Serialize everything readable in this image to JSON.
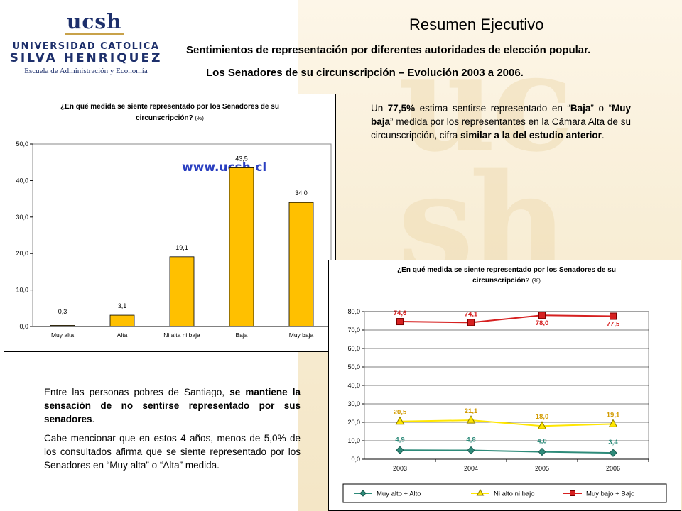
{
  "logo": {
    "ucsh": "ucsh",
    "line1": "UNIVERSIDAD CATOLICA",
    "line2": "SILVA HENRIQUEZ",
    "line3": "Escuela de Administración y Economía"
  },
  "header": {
    "title": "Resumen Ejecutivo",
    "subtitle1": "Sentimientos de representación por diferentes autoridades de elección popular.",
    "subtitle2": "Los Senadores de su circunscripción – Evolución 2003 a 2006."
  },
  "text_right": {
    "t1": "Un ",
    "t2": "77,5%",
    "t3": " estima sentirse representado en “",
    "t4": "Baja",
    "t5": "” o “",
    "t6": "Muy baja",
    "t7": "” medida por los representantes en la Cámara Alta de su circunscripción, cifra ",
    "t8": "similar a la del estudio anterior",
    "t9": "."
  },
  "text_left": {
    "p1a": "Entre las personas pobres de Santiago, ",
    "p1b": "se mantiene la sensación de no sentirse representado por sus senadores",
    "p1c": ".",
    "p2": "Cabe mencionar que en estos 4 años, menos de 5,0% de los consultados afirma que se siente representado por los Senadores en “Muy alta” o “Alta” medida."
  },
  "chart_data": [
    {
      "type": "bar",
      "title_line1": "¿En qué medida se siente representado por los Senadores de su",
      "title_line2": "circunscripción?",
      "title_unit": "(%)",
      "watermark": "www.ucsh.cl",
      "categories": [
        "Muy alta",
        "Alta",
        "Ni alta ni baja",
        "Baja",
        "Muy baja"
      ],
      "values": [
        0.3,
        3.1,
        19.1,
        43.5,
        34.0
      ],
      "value_labels": [
        "0,3",
        "3,1",
        "19,1",
        "43,5",
        "34,0"
      ],
      "ylim": [
        0,
        50
      ],
      "yticks": [
        "0,0",
        "10,0",
        "20,0",
        "30,0",
        "40,0",
        "50,0"
      ],
      "bar_color": "#ffc000",
      "grid": false
    },
    {
      "type": "line",
      "title_line1": "¿En qué medida se siente representado por los Senadores de su",
      "title_line2": "circunscripción?",
      "title_unit": "(%)",
      "categories": [
        "2003",
        "2004",
        "2005",
        "2006"
      ],
      "ylim": [
        0,
        80
      ],
      "yticks": [
        "0,0",
        "10,0",
        "20,0",
        "30,0",
        "40,0",
        "50,0",
        "60,0",
        "70,0",
        "80,0"
      ],
      "grid": true,
      "legend_position": "bottom",
      "series": [
        {
          "name": "Muy alto + Alto",
          "values": [
            4.9,
            4.8,
            4.0,
            3.4
          ],
          "labels": [
            "4,9",
            "4,8",
            "4,0",
            "3,4"
          ],
          "color": "#2e8b7a",
          "label_color": "#2e8b7a"
        },
        {
          "name": "Ni alto ni bajo",
          "values": [
            20.5,
            21.1,
            18.0,
            19.1
          ],
          "labels": [
            "20,5",
            "21,1",
            "18,0",
            "19,1"
          ],
          "color": "#ffe600",
          "label_color": "#d29b00"
        },
        {
          "name": "Muy bajo + Bajo",
          "values": [
            74.6,
            74.1,
            78.0,
            77.5
          ],
          "labels": [
            "74,6",
            "74,1",
            "78,0",
            "77,5"
          ],
          "color": "#d62020",
          "label_color": "#d62020"
        }
      ]
    }
  ]
}
